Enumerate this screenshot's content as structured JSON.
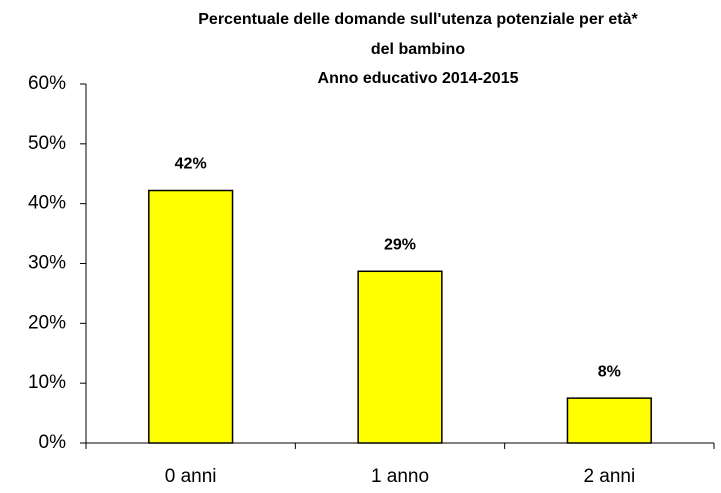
{
  "chart_data": {
    "type": "bar",
    "title": [
      "Percentuale delle domande sull'utenza potenziale per età*",
      "del bambino"
    ],
    "subtitle": "Anno educativo 2014-2015",
    "categories": [
      "0 anni",
      "1 anno",
      "2 anni"
    ],
    "values": [
      42.2,
      28.7,
      7.5
    ],
    "value_labels": [
      "42%",
      "29%",
      "8%"
    ],
    "color": "#ffff00",
    "ylim": [
      0,
      60
    ],
    "yticks": [
      {
        "value": 0,
        "label": "0%"
      },
      {
        "value": 10,
        "label": "10%"
      },
      {
        "value": 20,
        "label": "20%"
      },
      {
        "value": 30,
        "label": "30%"
      },
      {
        "value": 40,
        "label": "40%"
      },
      {
        "value": 50,
        "label": "50%"
      },
      {
        "value": 60,
        "label": "60%"
      }
    ],
    "grid": false
  }
}
